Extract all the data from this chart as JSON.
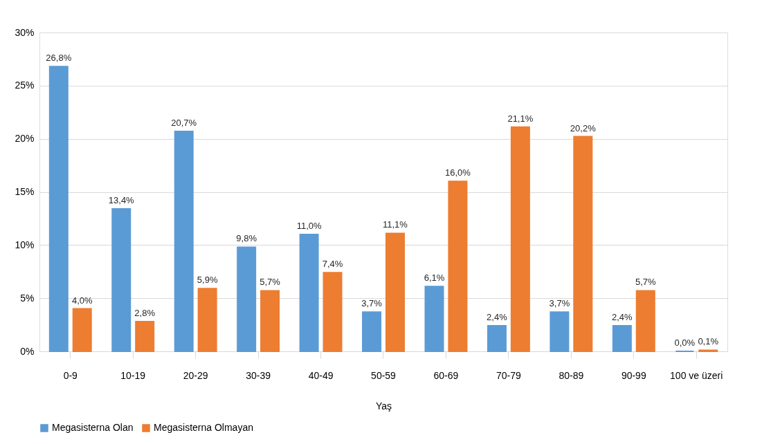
{
  "chart_data": {
    "type": "bar",
    "xlabel": "Yaş",
    "categories": [
      "0-9",
      "10-19",
      "20-29",
      "30-39",
      "40-49",
      "50-59",
      "60-69",
      "70-79",
      "80-89",
      "90-99",
      "100 ve üzeri"
    ],
    "series": [
      {
        "name": "Megasisterna Olan",
        "color": "#5b9bd5",
        "values": [
          26.8,
          13.4,
          20.7,
          9.8,
          11.0,
          3.7,
          6.1,
          2.4,
          3.7,
          2.4,
          0.0
        ],
        "value_labels": [
          "26,8%",
          "13,4%",
          "20,7%",
          "9,8%",
          "11,0%",
          "3,7%",
          "6,1%",
          "2,4%",
          "3,7%",
          "2,4%",
          "0,0%"
        ]
      },
      {
        "name": "Megasisterna Olmayan",
        "color": "#ed7d31",
        "values": [
          4.0,
          2.8,
          5.9,
          5.7,
          7.4,
          11.1,
          16.0,
          21.1,
          20.2,
          5.7,
          0.1
        ],
        "value_labels": [
          "4,0%",
          "2,8%",
          "5,9%",
          "5,7%",
          "7,4%",
          "11,1%",
          "16,0%",
          "21,1%",
          "20,2%",
          "5,7%",
          "0,1%"
        ]
      }
    ],
    "ylim": [
      0,
      30
    ],
    "yticks": [
      {
        "value": 0,
        "label": "0%"
      },
      {
        "value": 5,
        "label": "5%"
      },
      {
        "value": 10,
        "label": "10%"
      },
      {
        "value": 15,
        "label": "15%"
      },
      {
        "value": 20,
        "label": "20%"
      },
      {
        "value": 25,
        "label": "25%"
      },
      {
        "value": 30,
        "label": "30%"
      }
    ],
    "grid": "y",
    "legend": "bottom"
  }
}
